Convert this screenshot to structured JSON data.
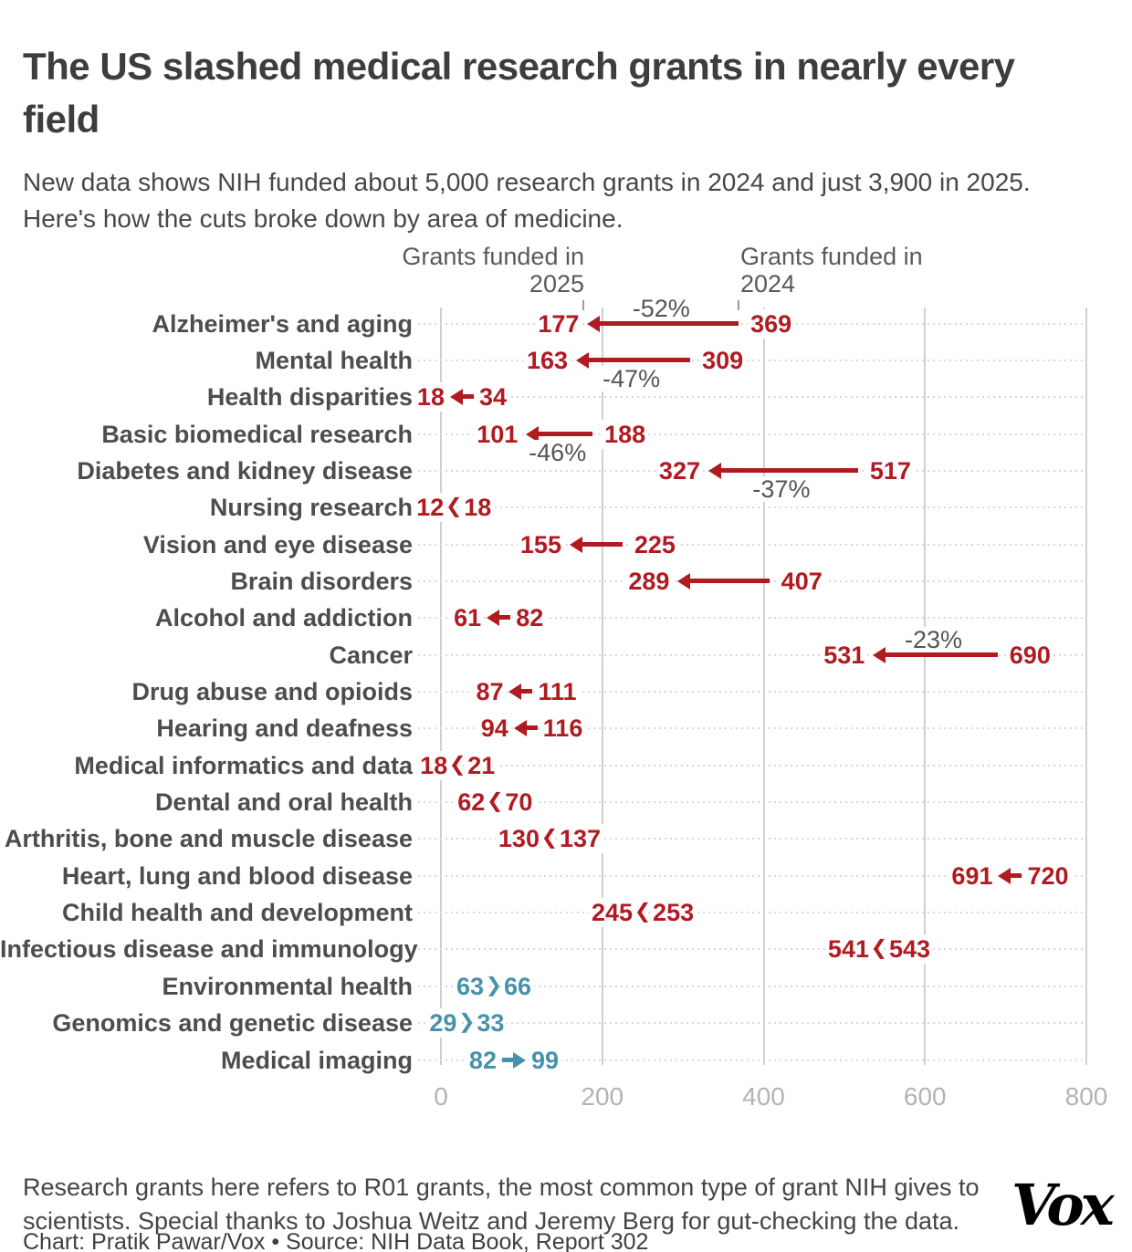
{
  "header": {
    "title": "The US slashed medical research grants in nearly every field",
    "subtitle": "New data shows NIH funded about 5,000 research grants in 2024 and just 3,900 in 2025. Here's how the cuts broke down by area of medicine."
  },
  "chart_data": {
    "type": "arrow",
    "description": "Arrow chart comparing number of NIH R01 research grants funded in 2024 vs 2025 by medical field",
    "column_headers": {
      "h2025_line1": "Grants funded in",
      "h2025_line2": "2025",
      "h2024_line1": "Grants funded in",
      "h2024_line2": "2024"
    },
    "x_axis": {
      "ticks": [
        0,
        200,
        400,
        600,
        800
      ],
      "range": [
        0,
        800
      ],
      "grid": true
    },
    "colors": {
      "decrease": "#b01b22",
      "increase": "#4792aa"
    },
    "rows": [
      {
        "label": "Alzheimer's and aging",
        "grants_2025": 177,
        "grants_2024": 369,
        "trend": "decrease",
        "change_label": "-52%",
        "change_label_pos": "above"
      },
      {
        "label": "Mental health",
        "grants_2025": 163,
        "grants_2024": 309,
        "trend": "decrease",
        "change_label": "-47%",
        "change_label_pos": "below"
      },
      {
        "label": "Health disparities",
        "grants_2025": 18,
        "grants_2024": 34,
        "trend": "decrease"
      },
      {
        "label": "Basic biomedical research",
        "grants_2025": 101,
        "grants_2024": 188,
        "trend": "decrease",
        "change_label": "-46%",
        "change_label_pos": "below"
      },
      {
        "label": "Diabetes and kidney disease",
        "grants_2025": 327,
        "grants_2024": 517,
        "trend": "decrease",
        "change_label": "-37%",
        "change_label_pos": "below"
      },
      {
        "label": "Nursing research",
        "grants_2025": 12,
        "grants_2024": 18,
        "trend": "decrease"
      },
      {
        "label": "Vision and eye disease",
        "grants_2025": 155,
        "grants_2024": 225,
        "trend": "decrease"
      },
      {
        "label": "Brain disorders",
        "grants_2025": 289,
        "grants_2024": 407,
        "trend": "decrease"
      },
      {
        "label": "Alcohol and addiction",
        "grants_2025": 61,
        "grants_2024": 82,
        "trend": "decrease"
      },
      {
        "label": "Cancer",
        "grants_2025": 531,
        "grants_2024": 690,
        "trend": "decrease",
        "change_label": "-23%",
        "change_label_pos": "above"
      },
      {
        "label": "Drug abuse and opioids",
        "grants_2025": 87,
        "grants_2024": 111,
        "trend": "decrease"
      },
      {
        "label": "Hearing and deafness",
        "grants_2025": 94,
        "grants_2024": 116,
        "trend": "decrease"
      },
      {
        "label": "Medical informatics and data",
        "grants_2025": 18,
        "grants_2024": 21,
        "trend": "decrease"
      },
      {
        "label": "Dental and oral health",
        "grants_2025": 62,
        "grants_2024": 70,
        "trend": "decrease"
      },
      {
        "label": "Arthritis, bone and muscle disease",
        "grants_2025": 130,
        "grants_2024": 137,
        "trend": "decrease"
      },
      {
        "label": "Heart, lung and blood disease",
        "grants_2025": 691,
        "grants_2024": 720,
        "trend": "decrease"
      },
      {
        "label": "Child health and development",
        "grants_2025": 245,
        "grants_2024": 253,
        "trend": "decrease"
      },
      {
        "label": "Infectious disease and immunology",
        "grants_2025": 541,
        "grants_2024": 543,
        "trend": "decrease"
      },
      {
        "label": "Environmental health",
        "grants_2025": 66,
        "grants_2024": 63,
        "trend": "increase"
      },
      {
        "label": "Genomics and genetic disease",
        "grants_2025": 33,
        "grants_2024": 29,
        "trend": "increase"
      },
      {
        "label": "Medical imaging",
        "grants_2025": 99,
        "grants_2024": 82,
        "trend": "increase"
      }
    ]
  },
  "footer": {
    "note": "Research grants here refers to R01 grants, the most common type of grant NIH gives to scientists. Special thanks to Joshua Weitz and Jeremy Berg for gut-checking the data.",
    "credit": "Chart: Pratik Pawar/Vox • Source: NIH Data Book, Report 302",
    "logo": "Vox"
  }
}
